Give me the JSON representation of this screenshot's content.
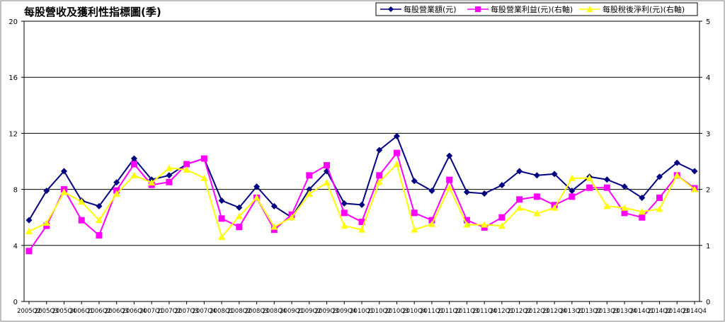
{
  "chart_data": {
    "type": "line",
    "title": "每股營收及獲利性指標圖(季)",
    "xlabel": "",
    "ylabel": "",
    "ylim": [
      0,
      20
    ],
    "y_ticks": [
      0,
      4,
      8,
      12,
      16,
      20
    ],
    "y2lim": [
      0,
      5
    ],
    "y2_ticks": [
      0,
      1,
      2,
      3,
      4,
      5
    ],
    "grid": true,
    "legend_position": "top-right",
    "categories": [
      "2005Q2",
      "2005Q3",
      "2005Q4",
      "2006Q1",
      "2006Q2",
      "2006Q3",
      "2006Q4",
      "2007Q1",
      "2007Q2",
      "2007Q3",
      "2007Q4",
      "2008Q1",
      "2008Q2",
      "2008Q3",
      "2008Q4",
      "2009Q1",
      "2009Q2",
      "2009Q3",
      "2009Q4",
      "2010Q1",
      "2010Q2",
      "2010Q3",
      "2010Q4",
      "2011Q1",
      "2011Q2",
      "2011Q3",
      "2011Q4",
      "2012Q1",
      "2012Q2",
      "2012Q3",
      "2012Q4",
      "2013Q1",
      "2013Q2",
      "2013Q3",
      "2013Q4",
      "2014Q1",
      "2014Q2",
      "2014Q3",
      "2014Q4"
    ],
    "series": [
      {
        "name": "每股營業額(元)",
        "axis": "left",
        "color": "#000080",
        "marker": "diamond",
        "values": [
          5.8,
          7.9,
          9.3,
          7.2,
          6.8,
          8.5,
          10.2,
          8.7,
          9.0,
          9.8,
          10.2,
          7.2,
          6.7,
          8.2,
          6.8,
          6.0,
          8.0,
          9.3,
          7.0,
          6.9,
          10.8,
          11.8,
          8.6,
          7.9,
          10.4,
          7.8,
          7.7,
          8.3,
          9.3,
          9.0,
          9.1,
          7.9,
          8.9,
          8.7,
          8.2,
          7.4,
          8.9,
          9.9,
          9.3
        ]
      },
      {
        "name": "每股營業利益(元)(右軸)",
        "axis": "right",
        "color": "#ff00ff",
        "marker": "square",
        "values": [
          0.9,
          1.35,
          2.0,
          1.45,
          1.18,
          1.98,
          2.45,
          2.08,
          2.13,
          2.45,
          2.55,
          1.48,
          1.33,
          1.85,
          1.28,
          1.55,
          2.25,
          2.43,
          1.58,
          1.42,
          2.25,
          2.65,
          1.58,
          1.45,
          2.17,
          1.45,
          1.32,
          1.5,
          1.82,
          1.87,
          1.72,
          1.87,
          2.03,
          2.03,
          1.58,
          1.5,
          1.85,
          2.25,
          2.02
        ]
      },
      {
        "name": "每股稅後淨利(元)(右軸)",
        "axis": "right",
        "color": "#ffff00",
        "marker": "triangle",
        "values": [
          1.25,
          1.4,
          1.95,
          1.78,
          1.45,
          1.92,
          2.25,
          2.12,
          2.38,
          2.35,
          2.2,
          1.15,
          1.52,
          1.85,
          1.33,
          1.5,
          1.92,
          2.12,
          1.35,
          1.28,
          2.13,
          2.45,
          1.28,
          1.38,
          2.03,
          1.37,
          1.37,
          1.35,
          1.67,
          1.57,
          1.67,
          2.2,
          2.2,
          1.7,
          1.67,
          1.6,
          1.65,
          2.25,
          2.0
        ]
      }
    ]
  }
}
